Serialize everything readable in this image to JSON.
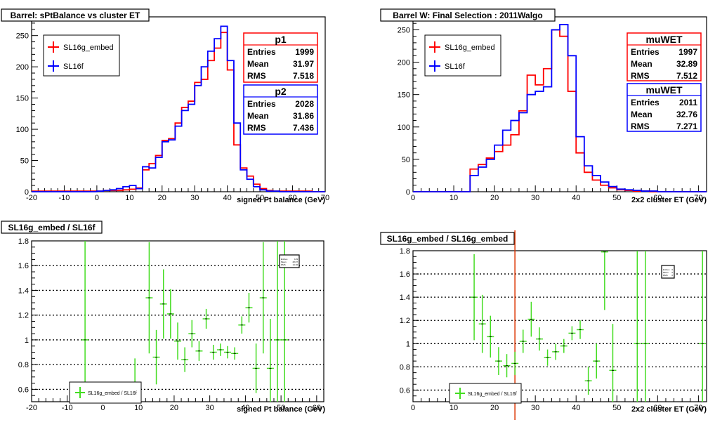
{
  "chart_data": [
    {
      "type": "step-histogram",
      "title": "Barrel: sPtBalance vs cluster ET",
      "xlabel": "signed Pt balance (GeV)",
      "ylabel": "",
      "xlim": [
        -20,
        70
      ],
      "ylim": [
        0,
        280
      ],
      "x_ticks": [
        -20,
        -10,
        0,
        10,
        20,
        30,
        40,
        50,
        60,
        70
      ],
      "y_ticks": [
        0,
        50,
        100,
        150,
        200,
        250
      ],
      "legend": {
        "position": "top-left",
        "entries": [
          "SL16g_embed",
          "SL16f"
        ]
      },
      "bin_width": 2,
      "bin_edges_start": -20,
      "series": [
        {
          "name": "SL16g_embed",
          "color": "#ff0000",
          "values": [
            1,
            1,
            1,
            1,
            1,
            1,
            1,
            1,
            1,
            1,
            1,
            2,
            2,
            2,
            3,
            4,
            6,
            35,
            45,
            58,
            82,
            85,
            110,
            135,
            145,
            175,
            180,
            210,
            230,
            255,
            195,
            75,
            38,
            25,
            12,
            5,
            2,
            1,
            1,
            1,
            1,
            1,
            1,
            0,
            0
          ]
        },
        {
          "name": "SL16f",
          "color": "#0000ff",
          "values": [
            0,
            0,
            0,
            0,
            0,
            0,
            0,
            0,
            0,
            0,
            1,
            2,
            3,
            5,
            8,
            10,
            5,
            40,
            38,
            55,
            80,
            83,
            105,
            130,
            140,
            170,
            200,
            225,
            245,
            265,
            210,
            110,
            35,
            20,
            8,
            3,
            1,
            1,
            0,
            0,
            0,
            0,
            0,
            0,
            0
          ]
        }
      ],
      "stats_boxes": [
        {
          "title": "p1",
          "color": "#ff0000",
          "rows": [
            [
              "Entries",
              "1999"
            ],
            [
              "Mean",
              "31.97"
            ],
            [
              "RMS",
              "7.518"
            ]
          ]
        },
        {
          "title": "p2",
          "color": "#0000ff",
          "rows": [
            [
              "Entries",
              "2028"
            ],
            [
              "Mean",
              "31.86"
            ],
            [
              "RMS",
              "7.436"
            ]
          ]
        }
      ]
    },
    {
      "type": "step-histogram",
      "title": "Barrel W: Final Selection : 2011Walgo",
      "xlabel": "2x2 cluster ET (GeV)",
      "ylabel": "",
      "xlim": [
        0,
        72
      ],
      "ylim": [
        0,
        270
      ],
      "x_ticks": [
        0,
        10,
        20,
        30,
        40,
        50,
        60,
        70
      ],
      "y_ticks": [
        0,
        50,
        100,
        150,
        200,
        250
      ],
      "legend": {
        "position": "top-left",
        "entries": [
          "SL16g_embed",
          "SL16f"
        ]
      },
      "bin_width": 2,
      "bin_edges_start": 0,
      "series": [
        {
          "name": "SL16g_embed",
          "color": "#ff0000",
          "values": [
            0,
            0,
            0,
            0,
            0,
            0,
            0,
            35,
            42,
            52,
            62,
            72,
            88,
            125,
            180,
            165,
            190,
            250,
            240,
            155,
            60,
            30,
            18,
            10,
            6,
            3,
            2,
            1,
            1,
            0,
            0,
            0,
            0,
            0,
            0,
            0
          ]
        },
        {
          "name": "SL16f",
          "color": "#0000ff",
          "values": [
            0,
            0,
            0,
            0,
            0,
            0,
            0,
            25,
            38,
            50,
            72,
            95,
            110,
            122,
            150,
            155,
            162,
            250,
            258,
            210,
            85,
            40,
            25,
            15,
            8,
            4,
            3,
            2,
            1,
            1,
            0,
            0,
            0,
            0,
            0,
            0
          ]
        }
      ],
      "stats_boxes": [
        {
          "title": "muWET",
          "color": "#ff0000",
          "rows": [
            [
              "Entries",
              "1997"
            ],
            [
              "Mean",
              "32.89"
            ],
            [
              "RMS",
              "7.512"
            ]
          ]
        },
        {
          "title": "muWET",
          "color": "#0000ff",
          "rows": [
            [
              "Entries",
              "2011"
            ],
            [
              "Mean",
              "32.76"
            ],
            [
              "RMS",
              "7.271"
            ]
          ]
        }
      ]
    },
    {
      "type": "errorbar-ratio",
      "title": "SL16g_embed / SL16f",
      "xlabel": "signed Pt balance (GeV)",
      "ylabel": "",
      "xlim": [
        -20,
        62
      ],
      "ylim": [
        0.5,
        1.8
      ],
      "x_ticks": [
        -20,
        -10,
        0,
        10,
        20,
        30,
        40,
        50,
        60
      ],
      "y_ticks": [
        0.6,
        0.8,
        1,
        1.2,
        1.4,
        1.6,
        1.8
      ],
      "gridlines_y": [
        0.6,
        0.8,
        1,
        1.2,
        1.4,
        1.6
      ],
      "legend": {
        "position": "bottom-left",
        "entries": [
          "SL16g_embed / SL16f"
        ]
      },
      "color": "#44dd22",
      "points": [
        {
          "x": -5,
          "y": 1.0,
          "err": 0.9
        },
        {
          "x": 9,
          "y": 0.55,
          "err": 0.3
        },
        {
          "x": 13,
          "y": 1.34,
          "err": 0.45
        },
        {
          "x": 15,
          "y": 0.86,
          "err": 0.22
        },
        {
          "x": 17,
          "y": 1.29,
          "err": 0.28
        },
        {
          "x": 19,
          "y": 1.21,
          "err": 0.2
        },
        {
          "x": 21,
          "y": 0.99,
          "err": 0.15
        },
        {
          "x": 23,
          "y": 0.84,
          "err": 0.1
        },
        {
          "x": 25,
          "y": 1.05,
          "err": 0.11
        },
        {
          "x": 27,
          "y": 0.91,
          "err": 0.08
        },
        {
          "x": 29,
          "y": 1.17,
          "err": 0.08
        },
        {
          "x": 31,
          "y": 0.9,
          "err": 0.06
        },
        {
          "x": 33,
          "y": 0.92,
          "err": 0.05
        },
        {
          "x": 35,
          "y": 0.9,
          "err": 0.05
        },
        {
          "x": 37,
          "y": 0.89,
          "err": 0.05
        },
        {
          "x": 39,
          "y": 1.12,
          "err": 0.07
        },
        {
          "x": 41,
          "y": 1.26,
          "err": 0.12
        },
        {
          "x": 43,
          "y": 0.77,
          "err": 0.2
        },
        {
          "x": 45,
          "y": 1.34,
          "err": 0.45
        },
        {
          "x": 47,
          "y": 0.77,
          "err": 0.4
        },
        {
          "x": 49,
          "y": 1.0,
          "err": 0.9
        },
        {
          "x": 51,
          "y": 1.0,
          "err": 0.9
        }
      ],
      "mini_stats_box": {
        "rows": [
          [
            "Entries",
            "129"
          ],
          [
            "Mean",
            "28.87"
          ],
          [
            "RMS",
            "14.36"
          ]
        ]
      }
    },
    {
      "type": "errorbar-ratio",
      "title": "SL16g_embed / SL16g_embed",
      "xlabel": "2x2 cluster ET (GeV)",
      "ylabel": "",
      "xlim": [
        0,
        72
      ],
      "ylim": [
        0.5,
        1.8
      ],
      "x_ticks": [
        0,
        10,
        20,
        30,
        40,
        50,
        60,
        70
      ],
      "y_ticks": [
        0.6,
        0.8,
        1,
        1.2,
        1.4,
        1.6,
        1.8
      ],
      "gridlines_y": [
        0.6,
        0.8,
        1,
        1.2,
        1.4,
        1.6
      ],
      "legend": {
        "position": "bottom-left",
        "entries": [
          "SL16g_embed / SL16f"
        ]
      },
      "color": "#44dd22",
      "cut_line": {
        "x": 25,
        "color": "#dd3300"
      },
      "points": [
        {
          "x": 15,
          "y": 1.4,
          "err": 0.37
        },
        {
          "x": 17,
          "y": 1.17,
          "err": 0.25
        },
        {
          "x": 19,
          "y": 1.06,
          "err": 0.18
        },
        {
          "x": 21,
          "y": 0.85,
          "err": 0.12
        },
        {
          "x": 23,
          "y": 0.81,
          "err": 0.1
        },
        {
          "x": 25,
          "y": 0.83,
          "err": 0.1
        },
        {
          "x": 27,
          "y": 1.02,
          "err": 0.1
        },
        {
          "x": 29,
          "y": 1.21,
          "err": 0.15
        },
        {
          "x": 31,
          "y": 1.04,
          "err": 0.1
        },
        {
          "x": 33,
          "y": 0.88,
          "err": 0.07
        },
        {
          "x": 35,
          "y": 0.93,
          "err": 0.07
        },
        {
          "x": 37,
          "y": 0.98,
          "err": 0.06
        },
        {
          "x": 39,
          "y": 1.09,
          "err": 0.06
        },
        {
          "x": 41,
          "y": 1.12,
          "err": 0.08
        },
        {
          "x": 43,
          "y": 0.68,
          "err": 0.12
        },
        {
          "x": 45,
          "y": 0.85,
          "err": 0.15
        },
        {
          "x": 47,
          "y": 1.79,
          "err": 0.5
        },
        {
          "x": 49,
          "y": 0.77,
          "err": 0.4
        },
        {
          "x": 55,
          "y": 1.0,
          "err": 0.9
        },
        {
          "x": 57,
          "y": 1.0,
          "err": 0.9
        },
        {
          "x": 71,
          "y": 1.0,
          "err": 0.9
        }
      ],
      "mini_stats_box": {
        "rows": [
          [
            "Entries",
            "0"
          ],
          [
            "Mean",
            "0"
          ],
          [
            "RMS",
            "0"
          ]
        ]
      }
    }
  ]
}
